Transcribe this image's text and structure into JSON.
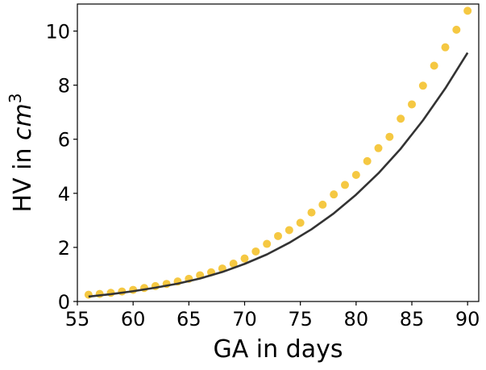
{
  "chart_data": {
    "type": "scatter",
    "xlabel": "GA in days",
    "ylabel_parts": {
      "prefix": "HV in ",
      "var": "cm",
      "sup": "3"
    },
    "xlim": [
      55,
      91
    ],
    "ylim": [
      0,
      11
    ],
    "xticks": [
      55,
      60,
      65,
      70,
      75,
      80,
      85,
      90
    ],
    "yticks": [
      0,
      2,
      4,
      6,
      8,
      10
    ],
    "grid": false,
    "legend": "none",
    "series": [
      {
        "kind": "points",
        "color": "#f5c842",
        "x": [
          56,
          57,
          58,
          59,
          60,
          61,
          62,
          63,
          64,
          65,
          66,
          67,
          68,
          69,
          70,
          71,
          72,
          73,
          74,
          75,
          76,
          77,
          78,
          79,
          80,
          81,
          82,
          83,
          84,
          85,
          86,
          87,
          88,
          89,
          90
        ],
        "y": [
          0.25,
          0.28,
          0.32,
          0.37,
          0.43,
          0.5,
          0.57,
          0.65,
          0.74,
          0.84,
          0.97,
          1.08,
          1.22,
          1.4,
          1.59,
          1.85,
          2.13,
          2.42,
          2.64,
          2.91,
          3.29,
          3.58,
          3.96,
          4.31,
          4.68,
          5.19,
          5.67,
          6.09,
          6.76,
          7.29,
          7.98,
          8.72,
          9.4,
          10.05,
          10.75
        ]
      },
      {
        "kind": "line",
        "color": "#333333",
        "x": [
          56,
          58,
          60,
          62,
          64,
          66,
          68,
          70,
          72,
          74,
          76,
          78,
          80,
          82,
          84,
          86,
          88,
          90
        ],
        "y": [
          0.18,
          0.27,
          0.38,
          0.51,
          0.66,
          0.85,
          1.09,
          1.39,
          1.74,
          2.17,
          2.67,
          3.26,
          3.95,
          4.74,
          5.65,
          6.7,
          7.88,
          9.2
        ]
      }
    ]
  }
}
